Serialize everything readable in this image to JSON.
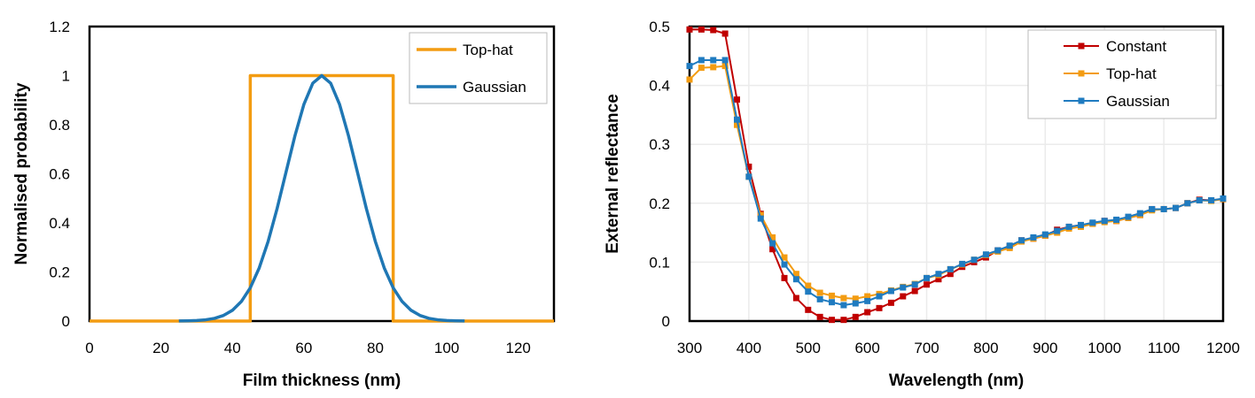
{
  "colors": {
    "tophat": "#F39C12",
    "gaussian": "#1F77B4",
    "constant": "#C00000",
    "gaussian_right": "#1F7BC0",
    "grid": "#EBEBEB"
  },
  "chart_data": [
    {
      "type": "line",
      "xlabel": "Film thickness (nm)",
      "ylabel": "Normalised probability",
      "xlim": [
        0,
        130
      ],
      "ylim": [
        0,
        1.2
      ],
      "xticks": [
        "0",
        "20",
        "40",
        "60",
        "80",
        "100",
        "120"
      ],
      "yticks": [
        "0",
        "0.2",
        "0.4",
        "0.6",
        "0.8",
        "1",
        "1.2"
      ],
      "grid": false,
      "legend": "top-right",
      "series": [
        {
          "name": "Top-hat",
          "x": [
            0,
            45,
            45,
            85,
            85,
            130
          ],
          "y": [
            0,
            0,
            1,
            1,
            0,
            0
          ]
        },
        {
          "name": "Gaussian",
          "x": [
            25,
            27.5,
            30,
            32.5,
            35,
            37.5,
            40,
            42.5,
            45,
            47.5,
            50,
            52.5,
            55,
            57.5,
            60,
            62.5,
            65,
            67.5,
            70,
            72.5,
            75,
            77.5,
            80,
            82.5,
            85,
            87.5,
            90,
            92.5,
            95,
            97.5,
            100,
            102.5,
            105
          ],
          "y": [
            0.0003,
            0.0009,
            0.0022,
            0.0051,
            0.0111,
            0.0228,
            0.0439,
            0.0796,
            0.1353,
            0.2163,
            0.3247,
            0.4578,
            0.6065,
            0.7548,
            0.8825,
            0.9692,
            1,
            0.9692,
            0.8825,
            0.7548,
            0.6065,
            0.4578,
            0.3247,
            0.2163,
            0.1353,
            0.0796,
            0.0439,
            0.0228,
            0.0111,
            0.0051,
            0.0022,
            0.0009,
            0.0003
          ]
        }
      ]
    },
    {
      "type": "line",
      "xlabel": "Wavelength (nm)",
      "ylabel": "External reflectance",
      "xlim": [
        300,
        1200
      ],
      "ylim": [
        0,
        0.5
      ],
      "xticks": [
        "300",
        "400",
        "500",
        "600",
        "700",
        "800",
        "900",
        "1000",
        "1100",
        "1200"
      ],
      "yticks": [
        "0",
        "0.1",
        "0.2",
        "0.3",
        "0.4",
        "0.5"
      ],
      "grid": true,
      "legend": "top-right",
      "x": [
        300,
        320,
        340,
        360,
        380,
        400,
        420,
        440,
        460,
        480,
        500,
        520,
        540,
        560,
        580,
        600,
        620,
        640,
        660,
        680,
        700,
        720,
        740,
        760,
        780,
        800,
        820,
        840,
        860,
        880,
        900,
        920,
        940,
        960,
        980,
        1000,
        1020,
        1040,
        1060,
        1080,
        1100,
        1120,
        1140,
        1160,
        1180,
        1200
      ],
      "series": [
        {
          "name": "Constant",
          "y": [
            0.495,
            0.495,
            0.494,
            0.488,
            0.376,
            0.262,
            0.182,
            0.122,
            0.073,
            0.039,
            0.019,
            0.007,
            0.002,
            0.002,
            0.007,
            0.015,
            0.022,
            0.031,
            0.042,
            0.051,
            0.062,
            0.071,
            0.08,
            0.092,
            0.1,
            0.108,
            0.12,
            0.127,
            0.137,
            0.14,
            0.145,
            0.155,
            0.16,
            0.163,
            0.166,
            0.17,
            0.17,
            0.175,
            0.18,
            0.19,
            0.19,
            0.192,
            0.2,
            0.206,
            0.205,
            0.207
          ]
        },
        {
          "name": "Top-hat",
          "y": [
            0.41,
            0.43,
            0.431,
            0.433,
            0.333,
            0.245,
            0.18,
            0.142,
            0.108,
            0.08,
            0.06,
            0.048,
            0.043,
            0.039,
            0.038,
            0.042,
            0.046,
            0.052,
            0.058,
            0.063,
            0.073,
            0.078,
            0.088,
            0.096,
            0.104,
            0.112,
            0.118,
            0.124,
            0.135,
            0.14,
            0.145,
            0.15,
            0.157,
            0.16,
            0.165,
            0.168,
            0.17,
            0.175,
            0.18,
            0.188,
            0.19,
            0.192,
            0.2,
            0.205,
            0.204,
            0.207
          ]
        },
        {
          "name": "Gaussian",
          "y": [
            0.433,
            0.443,
            0.443,
            0.443,
            0.342,
            0.245,
            0.174,
            0.132,
            0.096,
            0.071,
            0.05,
            0.037,
            0.032,
            0.027,
            0.03,
            0.034,
            0.042,
            0.051,
            0.057,
            0.062,
            0.073,
            0.08,
            0.088,
            0.097,
            0.104,
            0.113,
            0.12,
            0.128,
            0.137,
            0.142,
            0.147,
            0.153,
            0.16,
            0.163,
            0.167,
            0.17,
            0.172,
            0.177,
            0.183,
            0.19,
            0.19,
            0.192,
            0.2,
            0.205,
            0.205,
            0.208
          ]
        }
      ]
    }
  ]
}
